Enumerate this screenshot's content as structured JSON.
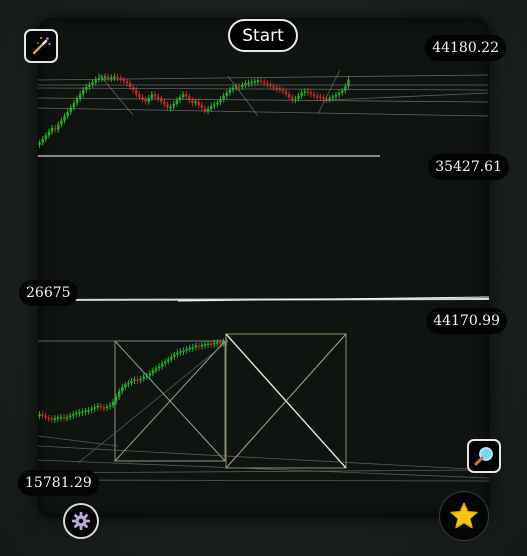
{
  "toolbar": {
    "start_label": "Start"
  },
  "icons": {
    "wand": "magic-wand-icon",
    "zoom": "magnifier-icon",
    "settings": "gear-icon",
    "favorite": "star-icon"
  },
  "price_labels": {
    "top_right": "44180.22",
    "mid_right": "35427.61",
    "mid_left": "26675",
    "lower_right": "44170.99",
    "bottom_left": "15781.29"
  },
  "colors": {
    "bull": "#22b02a",
    "bear": "#c0262a",
    "drawing": "#c8c8a8",
    "accent_star": "#f5c518"
  },
  "chart_data": [
    {
      "type": "candlestick",
      "name": "",
      "series": [
        {
          "name": "",
          "values": [
            1,
            1.5,
            2,
            2.5,
            3,
            2.8,
            3.5,
            4,
            4.6,
            5.2,
            5.8,
            6.4,
            7,
            7.6,
            8.2,
            8.6,
            8.9,
            9.2,
            9.6,
            9.8,
            9.9,
            10,
            9.7,
            9.9,
            10,
            9.8,
            9.6,
            9.4,
            9.1,
            8.6,
            8.2,
            7.6,
            7.2,
            6.9,
            6.6,
            7.1,
            7.6,
            7.3,
            7,
            6.6,
            6.2,
            5.8,
            5.9,
            6.3,
            6.8,
            7.2,
            7.6,
            7.3,
            6.8,
            6.4,
            6.6,
            6.1,
            5.7,
            5.3,
            5.6,
            6,
            6.2,
            6.5,
            6.9,
            7.4,
            7.8,
            8.2,
            8.5,
            8.7,
            8.6,
            8.9,
            9.1,
            9.2,
            9.3,
            9.4,
            9.5,
            9.3,
            9.1,
            8.9,
            8.7,
            8.5,
            8.4,
            8.2,
            8,
            7.6,
            7.2,
            6.8,
            7,
            7.4,
            7.8,
            8,
            7.8,
            7.6,
            7.4,
            7.3,
            7.2,
            7,
            6.9,
            7.1,
            7.3,
            7.5,
            7.8,
            8.1,
            8.7,
            9.6
          ]
        }
      ]
    },
    {
      "type": "candlestick",
      "name": "",
      "series": [
        {
          "name": "",
          "values": [
            2,
            1.8,
            1.5,
            1.4,
            1.3,
            1.4,
            1.5,
            1.6,
            1.5,
            1.6,
            1.8,
            2,
            2.2,
            2.3,
            2.4,
            2.5,
            2.6,
            2.8,
            3,
            3.2,
            3,
            2.9,
            3.1,
            3.3,
            3.8,
            4.5,
            5.3,
            5.9,
            6.3,
            6.5,
            6.8,
            7,
            6.9,
            7.1,
            7.4,
            7.6,
            7.9,
            8.3,
            8.6,
            8.9,
            9.3,
            9.6,
            9.9,
            10.3,
            10.6,
            10.9,
            11.1,
            11.2,
            11.4,
            11.6,
            11.7,
            11.9,
            11.8,
            12,
            12.1,
            12.2,
            12.1,
            12.3,
            12.4,
            12.2,
            12.5,
            12.6
          ]
        }
      ]
    }
  ]
}
